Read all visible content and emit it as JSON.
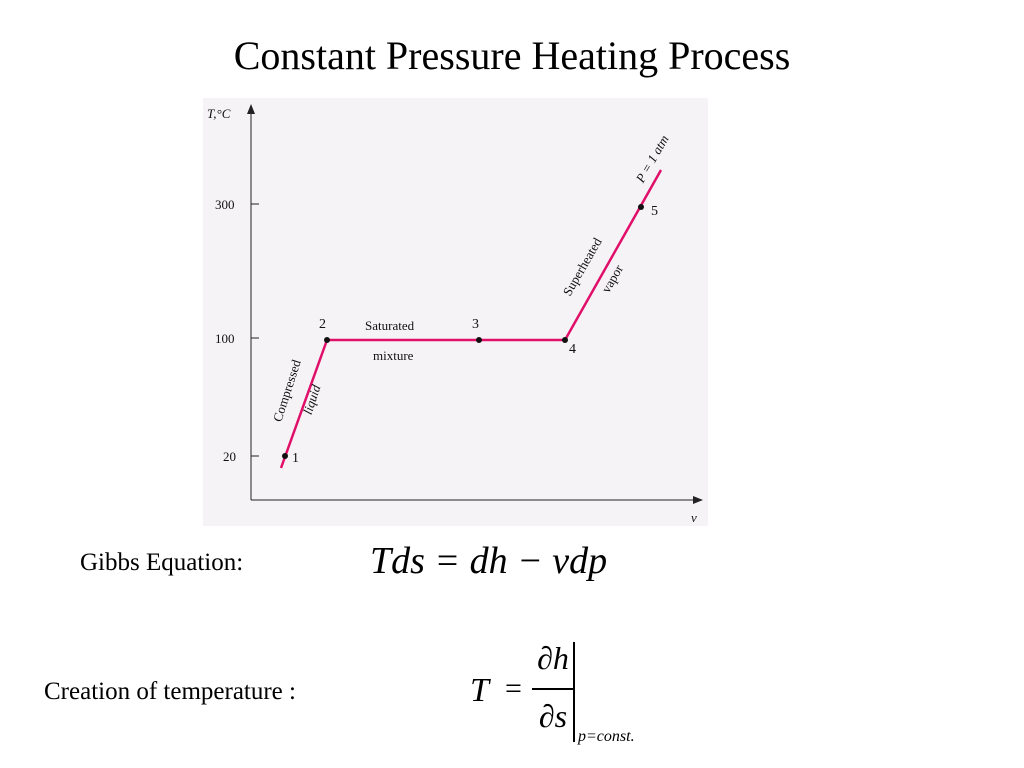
{
  "slide": {
    "title": "Constant Pressure Heating Process"
  },
  "diagram": {
    "y_axis_label": "T,°C",
    "x_axis_label": "v",
    "ticks": [
      "300",
      "100",
      "20"
    ],
    "points": [
      "1",
      "2",
      "3",
      "4",
      "5"
    ],
    "regions": {
      "compressed": "Compressed",
      "liquid": "liquid",
      "saturated": "Saturated",
      "mixture": "mixture",
      "superheated": "Superheated",
      "vapor": "vapor"
    },
    "pressure_label": "P = 1 atm",
    "line_color": "#e0106a"
  },
  "gibbs": {
    "label": "Gibbs Equation:",
    "equation": "Tds = dh − vdp"
  },
  "creation": {
    "label": "Creation of temperature :",
    "lhs": "T",
    "equals": "=",
    "numerator": "∂h",
    "denominator": "∂s",
    "subscript": "p=const."
  }
}
